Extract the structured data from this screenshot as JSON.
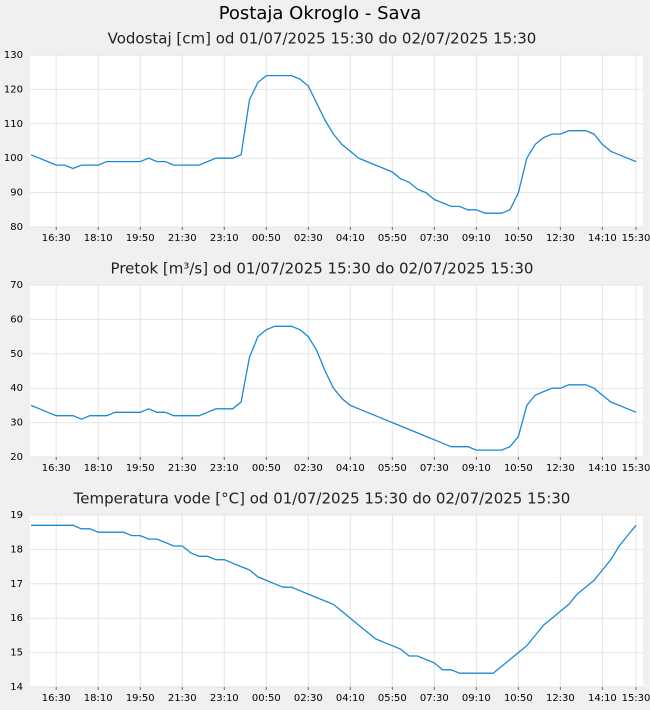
{
  "title": "Postaja Okroglo - Sava",
  "chart_data": [
    {
      "type": "line",
      "title": "Vodostaj [cm] od 01/07/2025 15:30 do 02/07/2025 15:30",
      "x": [
        "15:30",
        "15:50",
        "16:10",
        "16:30",
        "16:50",
        "17:10",
        "17:30",
        "17:50",
        "18:10",
        "18:30",
        "18:50",
        "19:10",
        "19:30",
        "19:50",
        "20:10",
        "20:30",
        "20:50",
        "21:10",
        "21:30",
        "21:50",
        "22:10",
        "22:30",
        "22:50",
        "23:10",
        "23:30",
        "23:50",
        "00:10",
        "00:30",
        "00:50",
        "01:10",
        "01:30",
        "01:50",
        "02:10",
        "02:30",
        "02:50",
        "03:10",
        "03:30",
        "03:50",
        "04:10",
        "04:30",
        "04:50",
        "05:10",
        "05:30",
        "05:50",
        "06:10",
        "06:30",
        "06:50",
        "07:10",
        "07:30",
        "07:50",
        "08:10",
        "08:30",
        "08:50",
        "09:10",
        "09:30",
        "09:50",
        "10:10",
        "10:30",
        "10:50",
        "11:10",
        "11:30",
        "11:50",
        "12:10",
        "12:30",
        "12:50",
        "13:10",
        "13:30",
        "13:50",
        "14:10",
        "14:30",
        "14:50",
        "15:10",
        "15:30"
      ],
      "values": [
        101,
        100,
        99,
        98,
        98,
        97,
        98,
        98,
        98,
        99,
        99,
        99,
        99,
        99,
        100,
        99,
        99,
        98,
        98,
        98,
        98,
        99,
        100,
        100,
        100,
        101,
        117,
        122,
        124,
        124,
        124,
        124,
        123,
        121,
        116,
        111,
        107,
        104,
        102,
        100,
        99,
        98,
        97,
        96,
        94,
        93,
        91,
        90,
        88,
        87,
        86,
        86,
        85,
        85,
        84,
        84,
        84,
        85,
        90,
        100,
        104,
        106,
        107,
        107,
        108,
        108,
        108,
        107,
        104,
        102,
        101,
        100,
        99
      ],
      "color": "#1a8ad4",
      "ylim": [
        80,
        130
      ],
      "yticks": [
        80,
        90,
        100,
        110,
        120,
        130
      ],
      "xticks": [
        "16:30",
        "18:10",
        "19:50",
        "21:30",
        "23:10",
        "00:50",
        "02:30",
        "04:10",
        "05:50",
        "07:30",
        "09:10",
        "10:50",
        "12:30",
        "14:10",
        "15:30"
      ],
      "grid": true
    },
    {
      "type": "line",
      "title": "Pretok [m³/s] od 01/07/2025 15:30 do 02/07/2025 15:30",
      "x": [
        "15:30",
        "15:50",
        "16:10",
        "16:30",
        "16:50",
        "17:10",
        "17:30",
        "17:50",
        "18:10",
        "18:30",
        "18:50",
        "19:10",
        "19:30",
        "19:50",
        "20:10",
        "20:30",
        "20:50",
        "21:10",
        "21:30",
        "21:50",
        "22:10",
        "22:30",
        "22:50",
        "23:10",
        "23:30",
        "23:50",
        "00:10",
        "00:30",
        "00:50",
        "01:10",
        "01:30",
        "01:50",
        "02:10",
        "02:30",
        "02:50",
        "03:10",
        "03:30",
        "03:50",
        "04:10",
        "04:30",
        "04:50",
        "05:10",
        "05:30",
        "05:50",
        "06:10",
        "06:30",
        "06:50",
        "07:10",
        "07:30",
        "07:50",
        "08:10",
        "08:30",
        "08:50",
        "09:10",
        "09:30",
        "09:50",
        "10:10",
        "10:30",
        "10:50",
        "11:10",
        "11:30",
        "11:50",
        "12:10",
        "12:30",
        "12:50",
        "13:10",
        "13:30",
        "13:50",
        "14:10",
        "14:30",
        "14:50",
        "15:10",
        "15:30"
      ],
      "values": [
        35,
        34,
        33,
        32,
        32,
        32,
        31,
        32,
        32,
        32,
        33,
        33,
        33,
        33,
        34,
        33,
        33,
        32,
        32,
        32,
        32,
        33,
        34,
        34,
        34,
        36,
        49,
        55,
        57,
        58,
        58,
        58,
        57,
        55,
        51,
        45,
        40,
        37,
        35,
        34,
        33,
        32,
        31,
        30,
        29,
        28,
        27,
        26,
        25,
        24,
        23,
        23,
        23,
        22,
        22,
        22,
        22,
        23,
        26,
        35,
        38,
        39,
        40,
        40,
        41,
        41,
        41,
        40,
        38,
        36,
        35,
        34,
        33
      ],
      "color": "#1a8ad4",
      "ylim": [
        20,
        70
      ],
      "yticks": [
        20,
        30,
        40,
        50,
        60,
        70
      ],
      "xticks": [
        "16:30",
        "18:10",
        "19:50",
        "21:30",
        "23:10",
        "00:50",
        "02:30",
        "04:10",
        "05:50",
        "07:30",
        "09:10",
        "10:50",
        "12:30",
        "14:10",
        "15:30"
      ],
      "grid": true
    },
    {
      "type": "line",
      "title": "Temperatura vode [°C] od 01/07/2025 15:30 do 02/07/2025 15:30",
      "x": [
        "15:30",
        "15:50",
        "16:10",
        "16:30",
        "16:50",
        "17:10",
        "17:30",
        "17:50",
        "18:10",
        "18:30",
        "18:50",
        "19:10",
        "19:30",
        "19:50",
        "20:10",
        "20:30",
        "20:50",
        "21:10",
        "21:30",
        "21:50",
        "22:10",
        "22:30",
        "22:50",
        "23:10",
        "23:30",
        "23:50",
        "00:10",
        "00:30",
        "00:50",
        "01:10",
        "01:30",
        "01:50",
        "02:10",
        "02:30",
        "02:50",
        "03:10",
        "03:30",
        "03:50",
        "04:10",
        "04:30",
        "04:50",
        "05:10",
        "05:30",
        "05:50",
        "06:10",
        "06:30",
        "06:50",
        "07:10",
        "07:30",
        "07:50",
        "08:10",
        "08:30",
        "08:50",
        "09:10",
        "09:30",
        "09:50",
        "10:10",
        "10:30",
        "10:50",
        "11:10",
        "11:30",
        "11:50",
        "12:10",
        "12:30",
        "12:50",
        "13:10",
        "13:30",
        "13:50",
        "14:10",
        "14:30",
        "14:50",
        "15:10",
        "15:30"
      ],
      "values": [
        18.7,
        18.7,
        18.7,
        18.7,
        18.7,
        18.7,
        18.6,
        18.6,
        18.5,
        18.5,
        18.5,
        18.5,
        18.4,
        18.4,
        18.3,
        18.3,
        18.2,
        18.1,
        18.1,
        17.9,
        17.8,
        17.8,
        17.7,
        17.7,
        17.6,
        17.5,
        17.4,
        17.2,
        17.1,
        17.0,
        16.9,
        16.9,
        16.8,
        16.7,
        16.6,
        16.5,
        16.4,
        16.2,
        16.0,
        15.8,
        15.6,
        15.4,
        15.3,
        15.2,
        15.1,
        14.9,
        14.9,
        14.8,
        14.7,
        14.5,
        14.5,
        14.4,
        14.4,
        14.4,
        14.4,
        14.4,
        14.6,
        14.8,
        15.0,
        15.2,
        15.5,
        15.8,
        16.0,
        16.2,
        16.4,
        16.7,
        16.9,
        17.1,
        17.4,
        17.7,
        18.1,
        18.4,
        18.7
      ],
      "color": "#1a8ad4",
      "ylim": [
        14,
        19
      ],
      "yticks": [
        14,
        15,
        16,
        17,
        18,
        19
      ],
      "xticks": [
        "16:30",
        "18:10",
        "19:50",
        "21:30",
        "23:10",
        "00:50",
        "02:30",
        "04:10",
        "05:50",
        "07:30",
        "09:10",
        "10:50",
        "12:30",
        "14:10",
        "15:30"
      ],
      "grid": true
    }
  ]
}
